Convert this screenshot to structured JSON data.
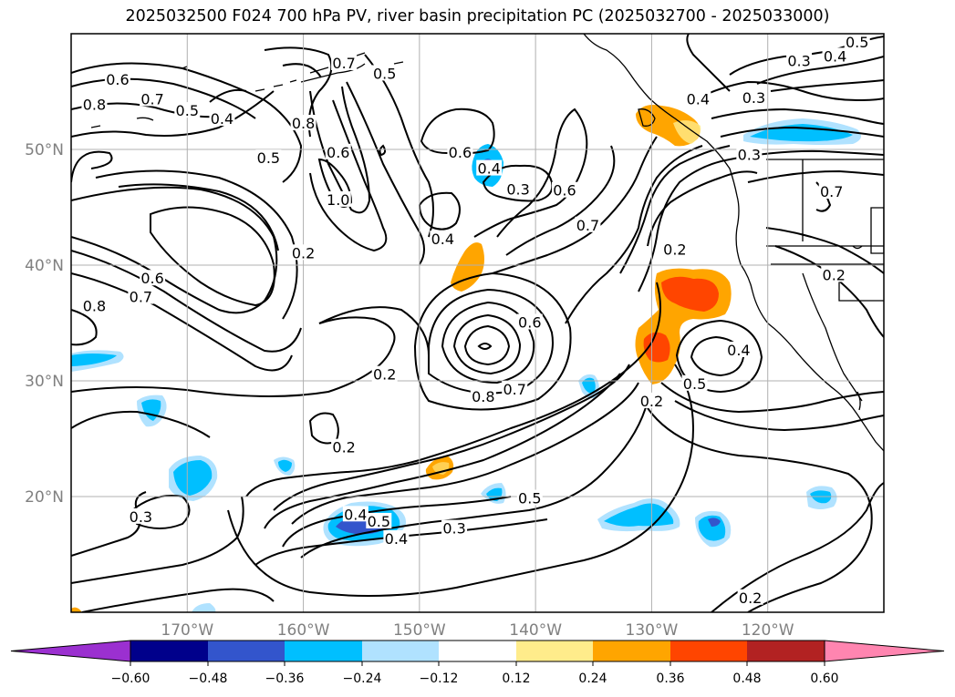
{
  "title": "2025032500 F024 700 hPa PV, river basin precipitation PC (2025032700 - 2025033000)",
  "map": {
    "lon_range": [
      -180,
      -110
    ],
    "lat_range": [
      10,
      60
    ],
    "lon_ticks": [
      {
        "value": -170,
        "label": "170°W"
      },
      {
        "value": -160,
        "label": "160°W"
      },
      {
        "value": -150,
        "label": "150°W"
      },
      {
        "value": -140,
        "label": "140°W"
      },
      {
        "value": -130,
        "label": "130°W"
      },
      {
        "value": -120,
        "label": "120°W"
      }
    ],
    "lat_ticks": [
      {
        "value": 20,
        "label": "20°N"
      },
      {
        "value": 30,
        "label": "30°N"
      },
      {
        "value": 40,
        "label": "40°N"
      },
      {
        "value": 50,
        "label": "50°N"
      }
    ],
    "grid": true,
    "contour_variable": "700 hPa PV",
    "fill_variable": "river basin precipitation PC",
    "contour_labels": [
      {
        "text": "0.6",
        "lon": -176,
        "lat": 56
      },
      {
        "text": "0.7",
        "lon": -173,
        "lat": 54.3
      },
      {
        "text": "0.8",
        "lon": -178,
        "lat": 53.8
      },
      {
        "text": "0.5",
        "lon": -170,
        "lat": 53.3
      },
      {
        "text": "0.4",
        "lon": -167,
        "lat": 52.6
      },
      {
        "text": "0.8",
        "lon": -160,
        "lat": 52.2
      },
      {
        "text": "0.5",
        "lon": -163,
        "lat": 49.2
      },
      {
        "text": "0.6",
        "lon": -157,
        "lat": 49.7
      },
      {
        "text": "1.0",
        "lon": -157,
        "lat": 45.6
      },
      {
        "text": "0.5",
        "lon": -153,
        "lat": 56.5
      },
      {
        "text": "0.7",
        "lon": -156.5,
        "lat": 57.4
      },
      {
        "text": "0.2",
        "lon": -160,
        "lat": 41
      },
      {
        "text": "0.6",
        "lon": -173,
        "lat": 38.8
      },
      {
        "text": "0.7",
        "lon": -174,
        "lat": 37.2
      },
      {
        "text": "0.8",
        "lon": -178,
        "lat": 36.4
      },
      {
        "text": "0.6",
        "lon": -146.5,
        "lat": 49.7
      },
      {
        "text": "0.4",
        "lon": -144,
        "lat": 48.3
      },
      {
        "text": "0.3",
        "lon": -141.5,
        "lat": 46.5
      },
      {
        "text": "0.6",
        "lon": -137.5,
        "lat": 46.4
      },
      {
        "text": "0.7",
        "lon": -135.5,
        "lat": 43.4
      },
      {
        "text": "0.4",
        "lon": -148,
        "lat": 42.2
      },
      {
        "text": "0.2",
        "lon": -153,
        "lat": 30.5
      },
      {
        "text": "0.6",
        "lon": -140.5,
        "lat": 35
      },
      {
        "text": "0.8",
        "lon": -144.5,
        "lat": 28.6
      },
      {
        "text": "0.7",
        "lon": -141.8,
        "lat": 29.2
      },
      {
        "text": "0.2",
        "lon": -156.5,
        "lat": 24.2
      },
      {
        "text": "0.4",
        "lon": -155.5,
        "lat": 18.4
      },
      {
        "text": "0.5",
        "lon": -153.5,
        "lat": 17.8
      },
      {
        "text": "0.4",
        "lon": -152,
        "lat": 16.3
      },
      {
        "text": "0.3",
        "lon": -147,
        "lat": 17.2
      },
      {
        "text": "0.5",
        "lon": -140.5,
        "lat": 19.8
      },
      {
        "text": "0.3",
        "lon": -174,
        "lat": 18.2
      },
      {
        "text": "0.2",
        "lon": -130,
        "lat": 28.2
      },
      {
        "text": "0.5",
        "lon": -126.3,
        "lat": 29.7
      },
      {
        "text": "0.4",
        "lon": -122.5,
        "lat": 32.6
      },
      {
        "text": "0.2",
        "lon": -128,
        "lat": 41.3
      },
      {
        "text": "0.2",
        "lon": -114.3,
        "lat": 39.1
      },
      {
        "text": "0.4",
        "lon": -126,
        "lat": 54.3
      },
      {
        "text": "0.3",
        "lon": -121.2,
        "lat": 54.4
      },
      {
        "text": "0.3",
        "lon": -121.6,
        "lat": 49.5
      },
      {
        "text": "0.3",
        "lon": -117.3,
        "lat": 57.6
      },
      {
        "text": "0.4",
        "lon": -114.2,
        "lat": 58
      },
      {
        "text": "0.5",
        "lon": -112.3,
        "lat": 59.2
      },
      {
        "text": "0.7",
        "lon": -114.5,
        "lat": 46.3
      },
      {
        "text": "0.2",
        "lon": -121.5,
        "lat": 11.2
      }
    ]
  },
  "colorbar": {
    "ticks": [
      "−0.60",
      "−0.48",
      "−0.36",
      "−0.24",
      "−0.12",
      "0.12",
      "0.24",
      "0.36",
      "0.48",
      "0.60"
    ],
    "colors": [
      "#9b30d0",
      "#00008b",
      "#3355cc",
      "#00bfff",
      "#b0e2ff",
      "#ffffff",
      "#ffec8b",
      "#ffa500",
      "#ff4500",
      "#b22222",
      "#ff85b0"
    ]
  }
}
